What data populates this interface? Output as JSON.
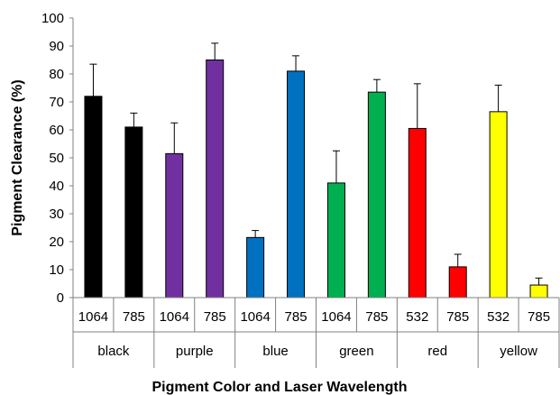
{
  "chart_data": {
    "type": "bar",
    "xlabel": "Pigment Color and Laser Wavelength",
    "ylabel": "Pigment Clearance (%)",
    "ylim": [
      0,
      100
    ],
    "yticks": [
      0,
      10,
      20,
      30,
      40,
      50,
      60,
      70,
      80,
      90,
      100
    ],
    "grid": false,
    "error_bars": "upper",
    "groups": [
      {
        "name": "black",
        "color": "#000000",
        "bars": [
          {
            "label": "1064",
            "value": 72,
            "error": 11.5
          },
          {
            "label": "785",
            "value": 61,
            "error": 5
          }
        ]
      },
      {
        "name": "purple",
        "color": "#7030a0",
        "bars": [
          {
            "label": "1064",
            "value": 51.5,
            "error": 11
          },
          {
            "label": "785",
            "value": 85,
            "error": 6
          }
        ]
      },
      {
        "name": "blue",
        "color": "#0070c0",
        "bars": [
          {
            "label": "1064",
            "value": 21.5,
            "error": 2.5
          },
          {
            "label": "785",
            "value": 81,
            "error": 5.5
          }
        ]
      },
      {
        "name": "green",
        "color": "#00b050",
        "bars": [
          {
            "label": "1064",
            "value": 41,
            "error": 11.5
          },
          {
            "label": "785",
            "value": 73.5,
            "error": 4.5
          }
        ]
      },
      {
        "name": "red",
        "color": "#ff0000",
        "bars": [
          {
            "label": "532",
            "value": 60.5,
            "error": 16
          },
          {
            "label": "785",
            "value": 11,
            "error": 4.5
          }
        ]
      },
      {
        "name": "yellow",
        "color": "#ffff00",
        "bars": [
          {
            "label": "532",
            "value": 66.5,
            "error": 9.5
          },
          {
            "label": "785",
            "value": 4.5,
            "error": 2.5
          }
        ]
      }
    ]
  }
}
